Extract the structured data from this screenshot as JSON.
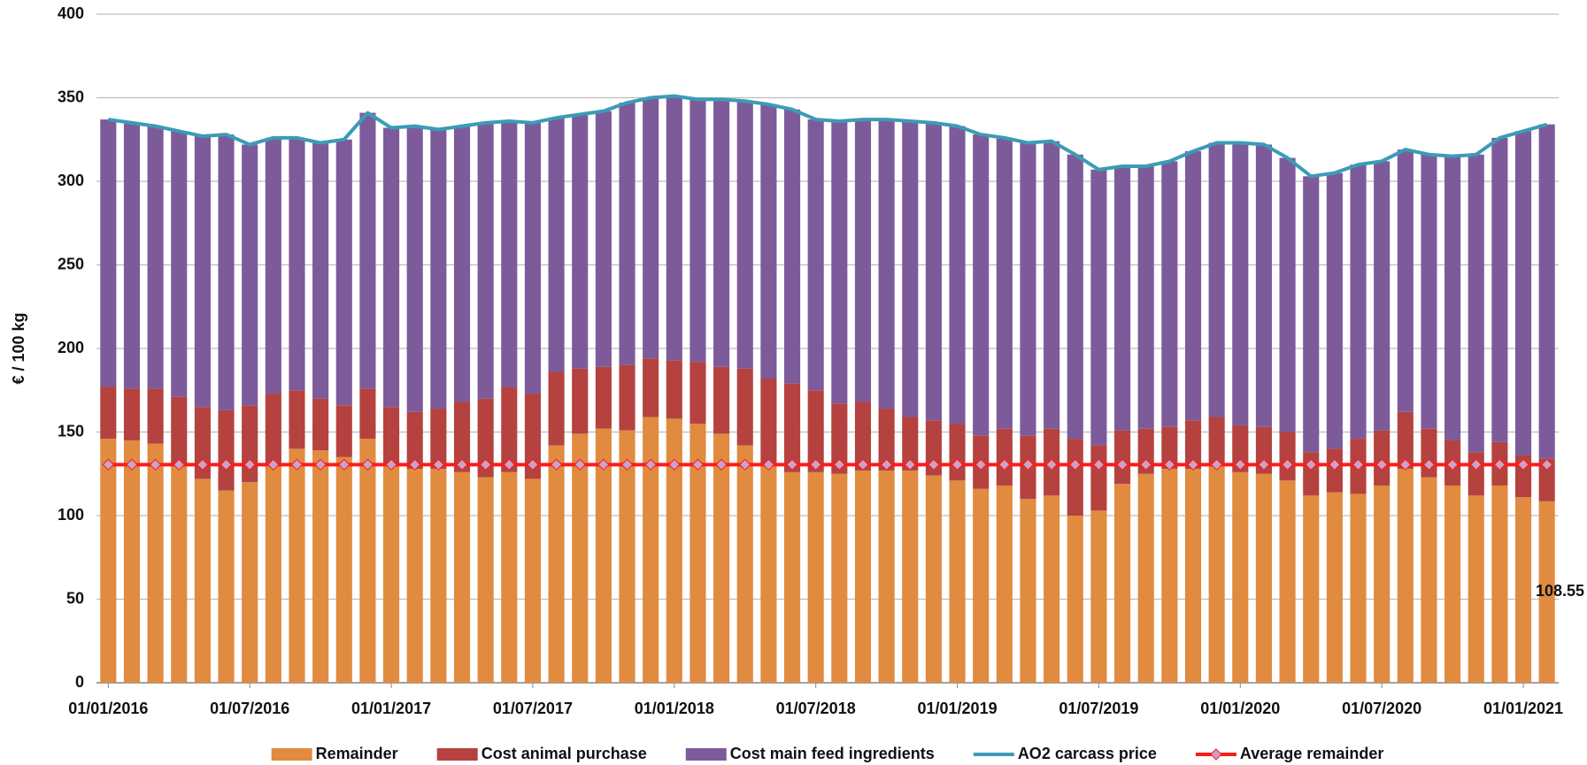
{
  "chart_data": {
    "type": "bar",
    "stacked": true,
    "grid": true,
    "y_label": "€ / 100 kg",
    "categories": [
      "01/01/2016",
      null,
      null,
      null,
      null,
      null,
      "01/07/2016",
      null,
      null,
      null,
      null,
      null,
      "01/01/2017",
      null,
      null,
      null,
      null,
      null,
      "01/07/2017",
      null,
      null,
      null,
      null,
      null,
      "01/01/2018",
      null,
      null,
      null,
      null,
      null,
      "01/07/2018",
      null,
      null,
      null,
      null,
      null,
      "01/01/2019",
      null,
      null,
      null,
      null,
      null,
      "01/07/2019",
      null,
      null,
      null,
      null,
      null,
      "01/01/2020",
      null,
      null,
      null,
      null,
      null,
      "01/07/2020",
      null,
      null,
      null,
      null,
      null,
      "01/01/2021",
      null
    ],
    "ylim": [
      0,
      400
    ],
    "yticks": [
      0,
      50,
      100,
      150,
      200,
      250,
      300,
      350,
      400
    ],
    "legend": "bottom",
    "series": [
      {
        "name": "Remainder",
        "type": "bar",
        "color": "#e08b40",
        "values": [
          146,
          145,
          143,
          130,
          122,
          115,
          120,
          130,
          140,
          139,
          135,
          146,
          130,
          128,
          128,
          126,
          123,
          126,
          122,
          142,
          149,
          152,
          151,
          159,
          158,
          155,
          149,
          142,
          130,
          126,
          126,
          125,
          127,
          127,
          127,
          124,
          121,
          116,
          118,
          110,
          112,
          100,
          103,
          119,
          125,
          128,
          128,
          130,
          126,
          125,
          121,
          112,
          114,
          113,
          118,
          128,
          123,
          118,
          112,
          118,
          111,
          108.55
        ],
        "value_labels": [
          null,
          null,
          null,
          null,
          null,
          null,
          null,
          null,
          null,
          null,
          null,
          null,
          null,
          null,
          null,
          null,
          null,
          null,
          null,
          null,
          null,
          null,
          null,
          null,
          null,
          null,
          null,
          null,
          null,
          null,
          null,
          null,
          null,
          null,
          null,
          null,
          null,
          null,
          null,
          null,
          null,
          null,
          null,
          null,
          null,
          null,
          null,
          null,
          null,
          null,
          null,
          null,
          null,
          null,
          null,
          null,
          null,
          null,
          null,
          null,
          null,
          "108.55"
        ]
      },
      {
        "name": "Cost animal purchase",
        "type": "bar",
        "color": "#b5423f",
        "values": [
          31,
          31,
          33,
          41,
          43,
          48,
          46,
          43,
          35,
          31,
          31,
          30,
          35,
          34,
          36,
          42,
          47,
          51,
          51,
          44,
          39,
          37,
          39,
          35,
          35,
          37,
          40,
          46,
          52,
          53,
          49,
          42,
          41,
          37,
          32,
          33,
          34,
          32,
          34,
          38,
          40,
          46,
          39,
          32,
          27,
          25,
          29,
          29,
          28,
          28,
          29,
          26,
          26,
          33,
          33,
          34,
          29,
          27,
          26,
          26,
          25,
          25.5
        ]
      },
      {
        "name": "Cost main feed ingredients",
        "type": "bar",
        "color": "#7d5b9b",
        "values": [
          160,
          159,
          157,
          159,
          162,
          165,
          156,
          153,
          151,
          153,
          159,
          165,
          167,
          171,
          167,
          165,
          165,
          159,
          162,
          152,
          152,
          153,
          157,
          156,
          158,
          157,
          160,
          160,
          164,
          164,
          162,
          169,
          169,
          173,
          177,
          178,
          178,
          180,
          174,
          175,
          172,
          170,
          165,
          158,
          157,
          159,
          161,
          164,
          169,
          169,
          164,
          165,
          165,
          164,
          161,
          157,
          164,
          170,
          178,
          182,
          194,
          200
        ]
      },
      {
        "name": "AO2 carcass price",
        "type": "line",
        "color": "#3a9cb6",
        "values": [
          337,
          335,
          333,
          330,
          327,
          328,
          322,
          326,
          326,
          323,
          325,
          341,
          332,
          333,
          331,
          333,
          335,
          336,
          335,
          338,
          340,
          342,
          347,
          350,
          351,
          349,
          349,
          348,
          346,
          343,
          337,
          336,
          337,
          337,
          336,
          335,
          333,
          328,
          326,
          323,
          324,
          316,
          307,
          309,
          309,
          312,
          318,
          323,
          323,
          322,
          314,
          303,
          305,
          310,
          312,
          319,
          316,
          315,
          316,
          326,
          330,
          334
        ]
      },
      {
        "name": "Average remainder",
        "type": "line",
        "color": "#ff1a1a",
        "marker": "diamond",
        "marker_color": "#c9a3c9",
        "values": [
          130.5,
          130.5,
          130.5,
          130.5,
          130.5,
          130.5,
          130.5,
          130.5,
          130.5,
          130.5,
          130.5,
          130.5,
          130.5,
          130.5,
          130.5,
          130.5,
          130.5,
          130.5,
          130.5,
          130.5,
          130.5,
          130.5,
          130.5,
          130.5,
          130.5,
          130.5,
          130.5,
          130.5,
          130.5,
          130.5,
          130.5,
          130.5,
          130.5,
          130.5,
          130.5,
          130.5,
          130.5,
          130.5,
          130.5,
          130.5,
          130.5,
          130.5,
          130.5,
          130.5,
          130.5,
          130.5,
          130.5,
          130.5,
          130.5,
          130.5,
          130.5,
          130.5,
          130.5,
          130.5,
          130.5,
          130.5,
          130.5,
          130.5,
          130.5,
          130.5,
          130.5,
          130.5
        ]
      }
    ]
  }
}
